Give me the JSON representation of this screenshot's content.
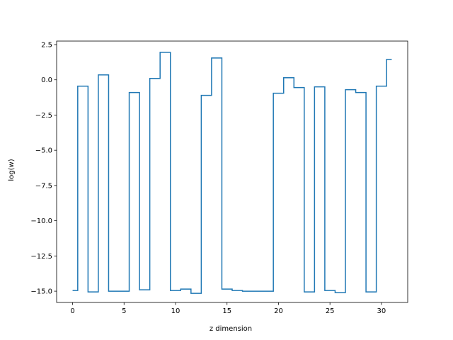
{
  "chart_data": {
    "type": "line",
    "drawstyle": "steps-mid",
    "xlabel": "z dimension",
    "ylabel": "log(w)",
    "xlim": [
      -1.55,
      32.55
    ],
    "ylim": [
      -15.8,
      2.75
    ],
    "xticks": [
      0,
      5,
      10,
      15,
      20,
      25,
      30
    ],
    "xtick_labels": [
      "0",
      "5",
      "10",
      "15",
      "20",
      "25",
      "30"
    ],
    "yticks": [
      2.5,
      0.0,
      -2.5,
      -5.0,
      -7.5,
      -10.0,
      -12.5,
      -15.0
    ],
    "ytick_labels": [
      "2.5",
      "0.0",
      "−2.5",
      "−5.0",
      "−7.5",
      "−10.0",
      "−12.5",
      "−15.0"
    ],
    "grid": false,
    "series": [
      {
        "color": "#1f77b4",
        "x": [
          0,
          1,
          2,
          3,
          4,
          5,
          6,
          7,
          8,
          9,
          10,
          11,
          12,
          13,
          14,
          15,
          16,
          17,
          18,
          19,
          20,
          21,
          22,
          23,
          24,
          25,
          26,
          27,
          28,
          29,
          30,
          31
        ],
        "y": [
          -14.95,
          -0.45,
          -15.05,
          0.35,
          -15.0,
          -15.0,
          -0.9,
          -14.9,
          0.1,
          1.95,
          -14.95,
          -14.85,
          -15.15,
          -1.1,
          1.55,
          -14.85,
          -14.95,
          -15.0,
          -15.0,
          -15.0,
          -0.95,
          0.15,
          -0.55,
          -15.05,
          -0.5,
          -14.95,
          -15.1,
          -0.7,
          -0.9,
          -15.05,
          -0.45,
          1.45
        ]
      }
    ]
  }
}
